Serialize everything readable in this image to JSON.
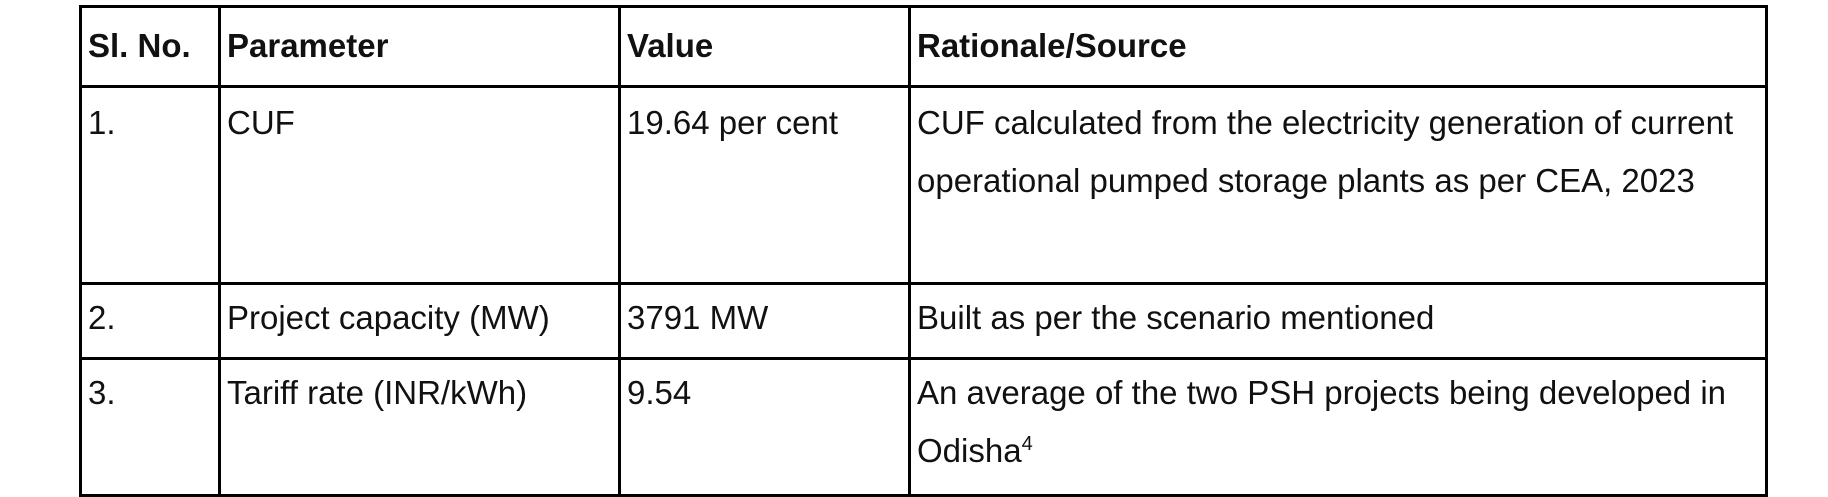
{
  "table": {
    "headers": [
      "Sl. No.",
      "Parameter",
      "Value",
      "Rationale/Source"
    ],
    "rows": [
      {
        "sl_no": "1.",
        "parameter": "CUF",
        "value": "19.64 per cent",
        "rationale": "CUF calculated from the electricity generation of current operational pumped storage plants as per CEA, 2023"
      },
      {
        "sl_no": "2.",
        "parameter": "Project capacity (MW)",
        "value": "3791 MW",
        "rationale": "Built as per the scenario mentioned"
      },
      {
        "sl_no": "3.",
        "parameter": "Tariff rate (INR/kWh)",
        "value": "9.54",
        "rationale": "An average of the two PSH projects being developed in Odisha",
        "footnote": "4"
      }
    ]
  }
}
